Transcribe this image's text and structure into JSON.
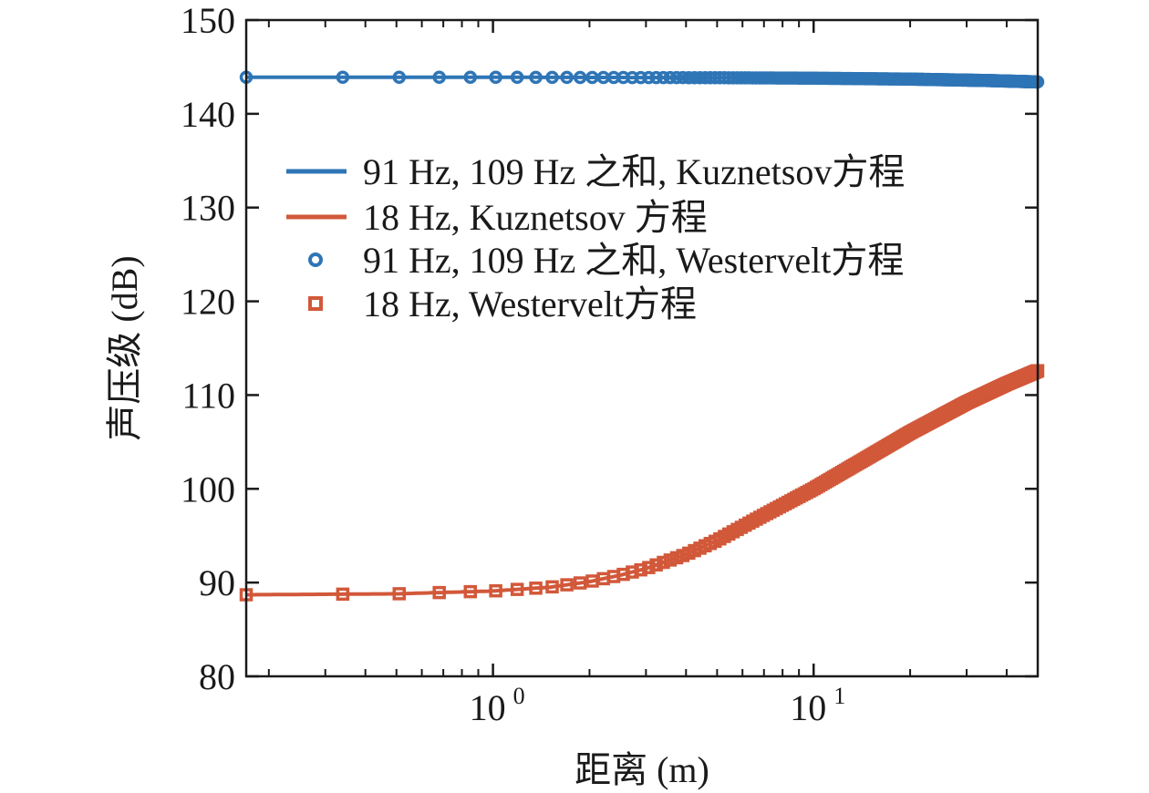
{
  "chart_data": {
    "type": "line",
    "xlabel": "距离 (m)",
    "ylabel": "声压级 (dB)",
    "xscale": "log",
    "xlim": [
      0.17,
      50
    ],
    "ylim": [
      80,
      150
    ],
    "yticks": [
      80,
      90,
      100,
      110,
      120,
      130,
      140,
      150
    ],
    "xticks": [
      {
        "value": 1,
        "base": "10",
        "exp": "0"
      },
      {
        "value": 10,
        "base": "10",
        "exp": "1"
      }
    ],
    "grid": false,
    "legend_position": "upper-left-center",
    "colors": {
      "blue": "#2e75b6",
      "orange": "#d2583a"
    },
    "series": [
      {
        "name": "91 Hz, 109 Hz 之和, Kuznetsov方程",
        "style": "line",
        "color": "#2e75b6",
        "x": [
          0.17,
          1,
          5,
          10,
          20,
          35,
          50
        ],
        "y": [
          143.9,
          143.9,
          143.85,
          143.8,
          143.7,
          143.55,
          143.4
        ]
      },
      {
        "name": "18 Hz, Kuznetsov 方程",
        "style": "line",
        "color": "#d2583a",
        "x": [
          0.17,
          0.5,
          1,
          1.5,
          2,
          2.5,
          3,
          4,
          5,
          7,
          10,
          15,
          20,
          30,
          40,
          50
        ],
        "y": [
          88.7,
          88.8,
          89.1,
          89.5,
          90.1,
          90.8,
          91.5,
          93.0,
          94.5,
          97.2,
          100.0,
          103.5,
          106.0,
          109.2,
          111.2,
          112.6
        ]
      },
      {
        "name": "91 Hz, 109 Hz 之和, Westervelt方程",
        "style": "marker-circle",
        "color": "#2e75b6",
        "x": [
          0.17,
          0.5,
          1,
          5,
          10,
          20,
          35,
          50
        ],
        "y": [
          143.9,
          143.9,
          143.9,
          143.85,
          143.8,
          143.7,
          143.55,
          143.4
        ]
      },
      {
        "name": "18 Hz, Westervelt方程",
        "style": "marker-square",
        "color": "#d2583a",
        "x": [
          0.17,
          0.5,
          1,
          1.5,
          2,
          2.5,
          3,
          4,
          5,
          7,
          10,
          15,
          20,
          30,
          40,
          50
        ],
        "y": [
          88.7,
          88.8,
          89.1,
          89.5,
          90.1,
          90.8,
          91.5,
          93.0,
          94.5,
          97.2,
          100.0,
          103.5,
          106.0,
          109.2,
          111.2,
          112.6
        ]
      }
    ]
  }
}
